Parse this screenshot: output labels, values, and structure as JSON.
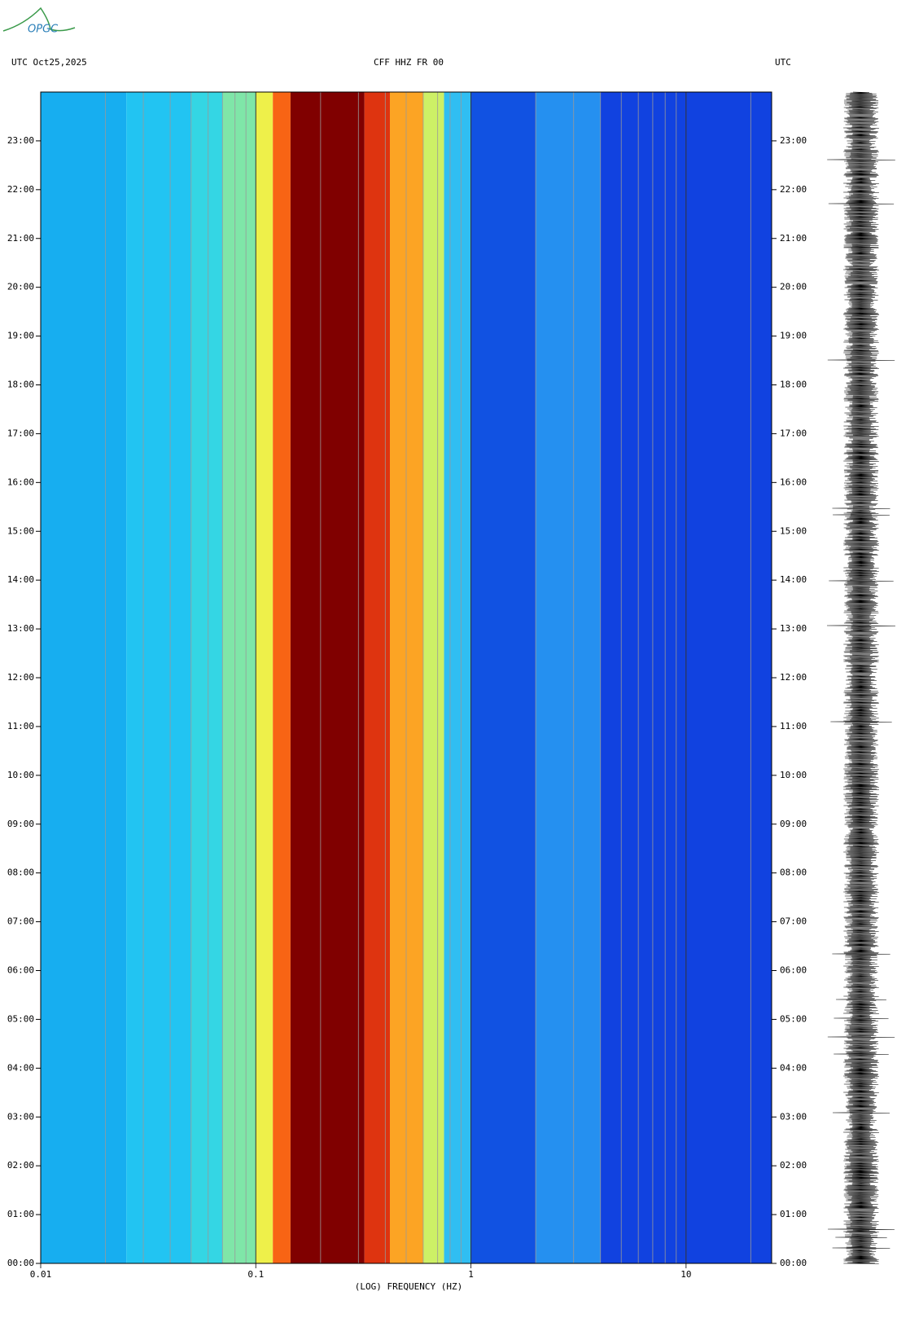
{
  "chart_data": {
    "type": "spectrogram",
    "logo": "OPGC",
    "title_left": "UTC  Oct25,2025",
    "title": "CFF HHZ FR 00",
    "title_right": "UTC",
    "x_label": "(LOG) FREQUENCY (HZ)",
    "xscale": "log",
    "xlim": [
      0.01,
      25
    ],
    "xticks": [
      0.01,
      0.1,
      1,
      10
    ],
    "xminor": [
      0.02,
      0.03,
      0.04,
      0.05,
      0.06,
      0.07,
      0.08,
      0.09,
      0.2,
      0.3,
      0.4,
      0.5,
      0.6,
      0.7,
      0.8,
      0.9,
      2,
      3,
      4,
      5,
      6,
      7,
      8,
      9,
      20
    ],
    "ylim": [
      0,
      24
    ],
    "yticks": [
      {
        "value": 0,
        "label": "00:00"
      },
      {
        "value": 1,
        "label": "01:00"
      },
      {
        "value": 2,
        "label": "02:00"
      },
      {
        "value": 3,
        "label": "03:00"
      },
      {
        "value": 4,
        "label": "04:00"
      },
      {
        "value": 5,
        "label": "05:00"
      },
      {
        "value": 6,
        "label": "06:00"
      },
      {
        "value": 7,
        "label": "07:00"
      },
      {
        "value": 8,
        "label": "08:00"
      },
      {
        "value": 9,
        "label": "09:00"
      },
      {
        "value": 10,
        "label": "10:00"
      },
      {
        "value": 11,
        "label": "11:00"
      },
      {
        "value": 12,
        "label": "12:00"
      },
      {
        "value": 13,
        "label": "13:00"
      },
      {
        "value": 14,
        "label": "14:00"
      },
      {
        "value": 15,
        "label": "15:00"
      },
      {
        "value": 16,
        "label": "16:00"
      },
      {
        "value": 17,
        "label": "17:00"
      },
      {
        "value": 18,
        "label": "18:00"
      },
      {
        "value": 19,
        "label": "19:00"
      },
      {
        "value": 20,
        "label": "20:00"
      },
      {
        "value": 21,
        "label": "21:00"
      },
      {
        "value": 22,
        "label": "22:00"
      },
      {
        "value": 23,
        "label": "23:00"
      }
    ],
    "bands": [
      {
        "from": 0.01,
        "to": 0.025,
        "color": "#17aef0"
      },
      {
        "from": 0.025,
        "to": 0.05,
        "color": "#22c4f2"
      },
      {
        "from": 0.05,
        "to": 0.07,
        "color": "#34d6e4"
      },
      {
        "from": 0.07,
        "to": 0.1,
        "color": "#7fe6a8"
      },
      {
        "from": 0.1,
        "to": 0.12,
        "color": "#eef04a"
      },
      {
        "from": 0.12,
        "to": 0.145,
        "color": "#f86414"
      },
      {
        "from": 0.145,
        "to": 0.32,
        "color": "#800000"
      },
      {
        "from": 0.32,
        "to": 0.42,
        "color": "#de3410"
      },
      {
        "from": 0.42,
        "to": 0.6,
        "color": "#fca424"
      },
      {
        "from": 0.6,
        "to": 0.75,
        "color": "#cdf066"
      },
      {
        "from": 0.75,
        "to": 1,
        "color": "#30bef2"
      },
      {
        "from": 1,
        "to": 2,
        "color": "#1152e2"
      },
      {
        "from": 2,
        "to": 4,
        "color": "#2590f0"
      },
      {
        "from": 4,
        "to": 25,
        "color": "#1142e0"
      }
    ]
  }
}
